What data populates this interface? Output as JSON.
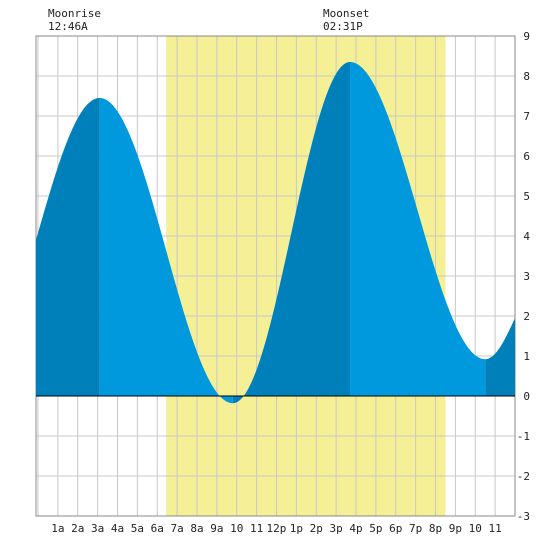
{
  "chart_data": {
    "type": "area",
    "title": "",
    "xlabel": "",
    "ylabel": "",
    "x_tick_labels": [
      "1a",
      "2a",
      "3a",
      "4a",
      "5a",
      "6a",
      "7a",
      "8a",
      "9a",
      "10",
      "11",
      "12p",
      "1p",
      "2p",
      "3p",
      "4p",
      "5p",
      "6p",
      "7p",
      "8p",
      "9p",
      "10",
      "11"
    ],
    "x_tick_hours": [
      1,
      2,
      3,
      4,
      5,
      6,
      7,
      8,
      9,
      10,
      11,
      12,
      13,
      14,
      15,
      16,
      17,
      18,
      19,
      20,
      21,
      22,
      23
    ],
    "xlim": [
      -0.1,
      24.0
    ],
    "ylim": [
      -3,
      9
    ],
    "y_ticks": [
      "-3",
      "-2",
      "-1",
      "0",
      "1",
      "2",
      "3",
      "4",
      "5",
      "6",
      "7",
      "8",
      "9"
    ],
    "grid": true,
    "daylight_span_hours": [
      6.45,
      20.5
    ],
    "annotations": {
      "moonrise": {
        "label": "Moonrise",
        "time": "12:46A"
      },
      "moonset": {
        "label": "Moonset",
        "time": "02:31P"
      }
    },
    "tide_extremes": [
      {
        "time_hours": 3.1,
        "height_ft": 7.45,
        "kind": "high"
      },
      {
        "time_hours": 9.8,
        "height_ft": -0.18,
        "kind": "low"
      },
      {
        "time_hours": 15.7,
        "height_ft": 8.35,
        "kind": "high"
      },
      {
        "time_hours": 22.5,
        "height_ft": 0.92,
        "kind": "low"
      }
    ],
    "series": [
      {
        "values_start": {
          "time_hours": -0.1,
          "height_ft": 3.9
        },
        "values_end": {
          "time_hours": 24.0,
          "height_ft": 1.95
        }
      }
    ],
    "colors": {
      "daylight": "#f5f096",
      "tide_light": "#0099dd",
      "tide_dark": "#0080bb",
      "grid": "#c8c8c8"
    }
  }
}
